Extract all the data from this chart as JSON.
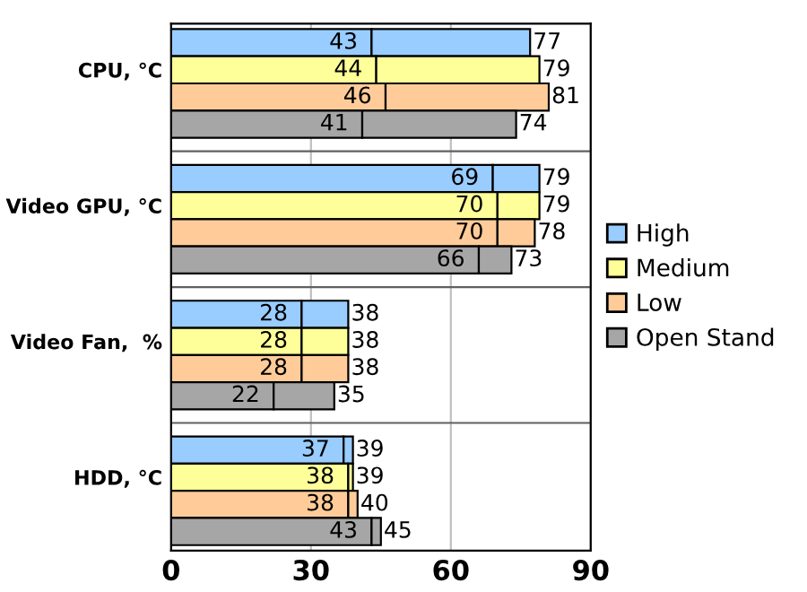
{
  "chart_data": {
    "type": "bar",
    "orientation": "horizontal",
    "stacked": true,
    "categories": [
      null,
      "CPU, °C",
      null,
      null,
      null,
      null,
      "Video GPU, °C",
      null,
      null,
      null,
      null,
      "Video Fan,  %",
      null,
      null,
      null,
      null,
      "HDD, °C",
      null,
      null
    ],
    "series": [
      {
        "name": "High",
        "color": "#99ccff",
        "values": [
          43,
          null,
          null,
          null,
          null,
          69,
          null,
          null,
          null,
          null,
          28,
          null,
          null,
          null,
          null,
          37,
          null,
          null,
          null
        ],
        "value_labels": [
          "43",
          null,
          null,
          null,
          null,
          "69",
          null,
          null,
          null,
          null,
          "28",
          null,
          null,
          null,
          null,
          "37",
          null,
          null,
          null
        ]
      },
      {
        "color": "#99ccff",
        "values": [
          34,
          null,
          null,
          null,
          null,
          10,
          null,
          null,
          null,
          null,
          10,
          null,
          null,
          null,
          null,
          2,
          null,
          null,
          null
        ]
      },
      {
        "name": "Medium",
        "color": "#ffff99",
        "values": [
          null,
          44,
          null,
          null,
          null,
          null,
          70,
          null,
          null,
          null,
          null,
          28,
          null,
          null,
          null,
          null,
          38,
          null,
          null
        ],
        "value_labels": [
          null,
          "44",
          null,
          null,
          null,
          null,
          "70",
          null,
          null,
          null,
          null,
          "28",
          null,
          null,
          null,
          null,
          "38",
          null,
          null
        ]
      },
      {
        "color": "#ffff99",
        "values": [
          null,
          35,
          null,
          null,
          null,
          null,
          9,
          null,
          null,
          null,
          null,
          10,
          null,
          null,
          null,
          null,
          1,
          null,
          null
        ]
      },
      {
        "name": "Low",
        "color": "#ffcc99",
        "values": [
          null,
          null,
          46,
          null,
          null,
          null,
          null,
          70,
          null,
          null,
          null,
          null,
          28,
          null,
          null,
          null,
          null,
          38,
          null
        ],
        "value_labels": [
          null,
          null,
          "46",
          null,
          null,
          null,
          null,
          "70",
          null,
          null,
          null,
          null,
          "28",
          null,
          null,
          null,
          null,
          "38",
          null
        ]
      },
      {
        "color": "#ffcc99",
        "values": [
          null,
          null,
          35,
          null,
          null,
          null,
          null,
          8,
          null,
          null,
          null,
          null,
          10,
          null,
          null,
          null,
          null,
          2,
          null
        ]
      },
      {
        "name": "Open Stand",
        "color": "#a6a6a6",
        "values": [
          null,
          null,
          null,
          41,
          null,
          null,
          null,
          null,
          66,
          null,
          null,
          null,
          null,
          22,
          null,
          null,
          null,
          null,
          43
        ],
        "value_labels": [
          null,
          null,
          null,
          "41",
          null,
          null,
          null,
          null,
          "66",
          null,
          null,
          null,
          null,
          "22",
          null,
          null,
          null,
          null,
          "43"
        ]
      },
      {
        "color": "#a6a6a6",
        "values": [
          null,
          null,
          null,
          33,
          null,
          null,
          null,
          null,
          7,
          null,
          null,
          null,
          null,
          13,
          null,
          null,
          null,
          null,
          2
        ]
      }
    ],
    "totals": [
      "77",
      "79",
      "81",
      "74",
      null,
      "79",
      "79",
      "78",
      "73",
      null,
      "38",
      "38",
      "38",
      "35",
      null,
      "39",
      "39",
      "40",
      "45"
    ],
    "xlim": [
      0,
      90
    ],
    "xticks": [
      0,
      30,
      60,
      90
    ],
    "grid": true,
    "legend": "right"
  }
}
